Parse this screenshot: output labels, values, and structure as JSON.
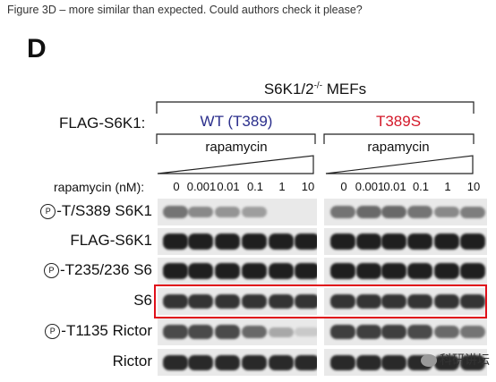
{
  "caption": "Figure 3D – more similar than expected. Could authors check it please?",
  "panel_letter": "D",
  "mef_title": "S6K1/2",
  "mef_title_sup": "-/-",
  "mef_title_suffix": " MEFs",
  "flag_label": "FLAG-S6K1:",
  "wt_label": "WT (T389)",
  "mut_label": "T389S",
  "rapamycin_label": "rapamycin",
  "dose_label": "rapamycin (nM):",
  "doses": [
    "0",
    "0.001",
    "0.01",
    "0.1",
    "1",
    "10",
    "0",
    "0.001",
    "0.01",
    "0.1",
    "1",
    "10"
  ],
  "phospho_symbol": "P",
  "rows": [
    {
      "prefix": "-T/S389 S6K1",
      "phospho": true,
      "intensity": [
        0.55,
        0.45,
        0.4,
        0.35,
        0.0,
        0.0,
        0.55,
        0.6,
        0.6,
        0.55,
        0.45,
        0.5
      ]
    },
    {
      "prefix": "FLAG-S6K1",
      "phospho": false,
      "intensity": [
        0.95,
        0.95,
        0.95,
        0.95,
        0.95,
        0.95,
        0.95,
        0.95,
        0.95,
        0.95,
        0.95,
        0.95
      ]
    },
    {
      "prefix": "-T235/236 S6",
      "phospho": true,
      "intensity": [
        0.95,
        0.95,
        0.95,
        0.95,
        0.95,
        0.95,
        0.95,
        0.95,
        0.95,
        0.95,
        0.95,
        0.95
      ]
    },
    {
      "prefix": "S6",
      "phospho": false,
      "intensity": [
        0.85,
        0.85,
        0.85,
        0.85,
        0.85,
        0.85,
        0.85,
        0.85,
        0.85,
        0.85,
        0.85,
        0.85
      ]
    },
    {
      "prefix": "-T1135 Rictor",
      "phospho": true,
      "intensity": [
        0.75,
        0.75,
        0.75,
        0.6,
        0.3,
        0.15,
        0.8,
        0.8,
        0.8,
        0.75,
        0.6,
        0.55
      ]
    },
    {
      "prefix": "Rictor",
      "phospho": false,
      "intensity": [
        0.9,
        0.9,
        0.9,
        0.9,
        0.9,
        0.9,
        0.9,
        0.9,
        0.9,
        0.9,
        0.9,
        0.9
      ]
    }
  ],
  "highlight_row": "S6",
  "highlight_color": "#e0101a",
  "wt_color": "#2b2f8c",
  "mut_color": "#d4192a",
  "watermark": "科研讲坛"
}
